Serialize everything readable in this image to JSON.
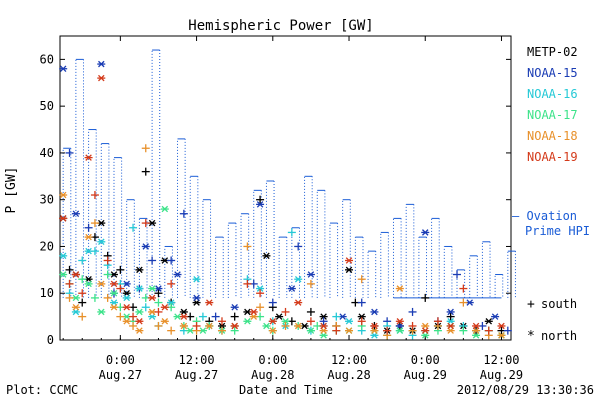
{
  "chart_data": {
    "type": "scatter",
    "title": "Hemispheric Power [GW]",
    "xlabel": "Date and Time",
    "ylabel": "P [GW]",
    "ylim": [
      0,
      65
    ],
    "xlim": [
      -9.5,
      61.5
    ],
    "x_unit": "hours since 2012-08-27 00:00 UT",
    "y_ticks": [
      0,
      10,
      20,
      30,
      40,
      50,
      60
    ],
    "x_ticks": [
      {
        "x": 0,
        "time": "0:00",
        "date": "Aug.27"
      },
      {
        "x": 12,
        "time": "12:00",
        "date": "Aug.27"
      },
      {
        "x": 24,
        "time": "0:00",
        "date": "Aug.28"
      },
      {
        "x": 36,
        "time": "12:00",
        "date": "Aug.28"
      },
      {
        "x": 48,
        "time": "0:00",
        "date": "Aug.29"
      },
      {
        "x": 60,
        "time": "12:00",
        "date": "Aug.29"
      }
    ],
    "footer_left": "Plot: CCMC",
    "footer_right": "2012/08/29 13:30:36",
    "legend_position": "right",
    "series": [
      {
        "name": "METP-02",
        "color": "#000000",
        "points": [
          [
            -9,
            26
          ],
          [
            -8,
            15
          ],
          [
            -7,
            14
          ],
          [
            -6,
            8
          ],
          [
            -5,
            13
          ],
          [
            -4,
            22
          ],
          [
            -3,
            25
          ],
          [
            -2,
            18
          ],
          [
            -1,
            14
          ],
          [
            0,
            15
          ],
          [
            1,
            10
          ],
          [
            2,
            7
          ],
          [
            3,
            15
          ],
          [
            4,
            36
          ],
          [
            5,
            25
          ],
          [
            6,
            10
          ],
          [
            7,
            17
          ],
          [
            8,
            8
          ],
          [
            10,
            6
          ],
          [
            11,
            5
          ],
          [
            12,
            8
          ],
          [
            14,
            4
          ],
          [
            16,
            3
          ],
          [
            18,
            5
          ],
          [
            20,
            6
          ],
          [
            22,
            30
          ],
          [
            23,
            18
          ],
          [
            24,
            7
          ],
          [
            25,
            5
          ],
          [
            27,
            4
          ],
          [
            29,
            3
          ],
          [
            30,
            6
          ],
          [
            32,
            5
          ],
          [
            34,
            3
          ],
          [
            36,
            15
          ],
          [
            37,
            8
          ],
          [
            38,
            5
          ],
          [
            40,
            3
          ],
          [
            42,
            2
          ],
          [
            44,
            3
          ],
          [
            46,
            2
          ],
          [
            48,
            9
          ],
          [
            50,
            3
          ],
          [
            52,
            5
          ],
          [
            54,
            3
          ],
          [
            56,
            2
          ],
          [
            58,
            4
          ],
          [
            60,
            2
          ]
        ]
      },
      {
        "name": "NOAA-15",
        "color": "#1a3cb4",
        "points": [
          [
            -9,
            58
          ],
          [
            -8,
            40
          ],
          [
            -7,
            27
          ],
          [
            -5,
            24
          ],
          [
            -3,
            59
          ],
          [
            -1,
            10
          ],
          [
            1,
            12
          ],
          [
            3,
            11
          ],
          [
            4,
            20
          ],
          [
            5,
            17
          ],
          [
            6,
            11
          ],
          [
            8,
            17
          ],
          [
            9,
            14
          ],
          [
            10,
            27
          ],
          [
            12,
            9
          ],
          [
            15,
            5
          ],
          [
            18,
            7
          ],
          [
            21,
            12
          ],
          [
            22,
            29
          ],
          [
            24,
            8
          ],
          [
            27,
            11
          ],
          [
            28,
            20
          ],
          [
            30,
            14
          ],
          [
            32,
            4
          ],
          [
            35,
            5
          ],
          [
            38,
            8
          ],
          [
            40,
            6
          ],
          [
            42,
            4
          ],
          [
            44,
            3
          ],
          [
            46,
            6
          ],
          [
            48,
            23
          ],
          [
            50,
            4
          ],
          [
            52,
            6
          ],
          [
            53,
            14
          ],
          [
            55,
            8
          ],
          [
            57,
            3
          ],
          [
            59,
            5
          ],
          [
            61,
            2
          ]
        ]
      },
      {
        "name": "NOAA-16",
        "color": "#25c9d6",
        "points": [
          [
            -9,
            18
          ],
          [
            -8,
            10
          ],
          [
            -7,
            6
          ],
          [
            -6,
            17
          ],
          [
            -5,
            19
          ],
          [
            -4,
            19
          ],
          [
            -3,
            21
          ],
          [
            -2,
            16
          ],
          [
            -1,
            8
          ],
          [
            0,
            12
          ],
          [
            1,
            9
          ],
          [
            2,
            24
          ],
          [
            3,
            11
          ],
          [
            4,
            7
          ],
          [
            5,
            5
          ],
          [
            6,
            3
          ],
          [
            8,
            8
          ],
          [
            10,
            2
          ],
          [
            12,
            13
          ],
          [
            13,
            5
          ],
          [
            14,
            3
          ],
          [
            16,
            2
          ],
          [
            18,
            3
          ],
          [
            20,
            13
          ],
          [
            22,
            11
          ],
          [
            24,
            4
          ],
          [
            26,
            3
          ],
          [
            27,
            23
          ],
          [
            28,
            13
          ],
          [
            30,
            2
          ],
          [
            32,
            3
          ],
          [
            34,
            5
          ],
          [
            36,
            4
          ],
          [
            38,
            2
          ],
          [
            40,
            1
          ],
          [
            42,
            3
          ],
          [
            44,
            2
          ],
          [
            46,
            1
          ],
          [
            48,
            2
          ],
          [
            50,
            3
          ],
          [
            52,
            4
          ],
          [
            54,
            3
          ],
          [
            56,
            2
          ],
          [
            58,
            2
          ],
          [
            60,
            1
          ]
        ]
      },
      {
        "name": "NOAA-17",
        "color": "#3de38a",
        "points": [
          [
            -9,
            14
          ],
          [
            -8,
            12
          ],
          [
            -7,
            9
          ],
          [
            -6,
            13
          ],
          [
            -5,
            12
          ],
          [
            -4,
            9
          ],
          [
            -3,
            6
          ],
          [
            -2,
            14
          ],
          [
            -1,
            10
          ],
          [
            0,
            7
          ],
          [
            1,
            5
          ],
          [
            2,
            4
          ],
          [
            3,
            6
          ],
          [
            4,
            9
          ],
          [
            5,
            11
          ],
          [
            6,
            8
          ],
          [
            7,
            28
          ],
          [
            8,
            7
          ],
          [
            9,
            5
          ],
          [
            10,
            3
          ],
          [
            11,
            2
          ],
          [
            12,
            4
          ],
          [
            13,
            2
          ],
          [
            14,
            3
          ],
          [
            16,
            2
          ],
          [
            18,
            2
          ],
          [
            20,
            4
          ],
          [
            22,
            5
          ],
          [
            23,
            3
          ],
          [
            24,
            2
          ],
          [
            26,
            4
          ],
          [
            28,
            3
          ],
          [
            30,
            2
          ],
          [
            31,
            3
          ],
          [
            32,
            1
          ],
          [
            34,
            2
          ],
          [
            36,
            2
          ],
          [
            38,
            3
          ],
          [
            40,
            2
          ],
          [
            42,
            1
          ],
          [
            44,
            2
          ],
          [
            46,
            2
          ],
          [
            48,
            1
          ],
          [
            50,
            2
          ],
          [
            52,
            3
          ],
          [
            54,
            2
          ],
          [
            56,
            1
          ],
          [
            58,
            2
          ],
          [
            60,
            1
          ]
        ]
      },
      {
        "name": "NOAA-18",
        "color": "#e8902a",
        "points": [
          [
            -9,
            31
          ],
          [
            -8,
            9
          ],
          [
            -7,
            7
          ],
          [
            -6,
            5
          ],
          [
            -5,
            22
          ],
          [
            -4,
            25
          ],
          [
            -3,
            12
          ],
          [
            -2,
            9
          ],
          [
            -1,
            7
          ],
          [
            0,
            5
          ],
          [
            1,
            4
          ],
          [
            2,
            3
          ],
          [
            3,
            2
          ],
          [
            4,
            41
          ],
          [
            5,
            6
          ],
          [
            6,
            3
          ],
          [
            7,
            4
          ],
          [
            8,
            2
          ],
          [
            10,
            3
          ],
          [
            12,
            2
          ],
          [
            14,
            3
          ],
          [
            16,
            2
          ],
          [
            18,
            3
          ],
          [
            20,
            20
          ],
          [
            21,
            5
          ],
          [
            22,
            7
          ],
          [
            24,
            2
          ],
          [
            26,
            3
          ],
          [
            28,
            3
          ],
          [
            30,
            12
          ],
          [
            32,
            2
          ],
          [
            34,
            3
          ],
          [
            36,
            2
          ],
          [
            38,
            13
          ],
          [
            40,
            2
          ],
          [
            42,
            1
          ],
          [
            44,
            11
          ],
          [
            46,
            2
          ],
          [
            48,
            3
          ],
          [
            50,
            3
          ],
          [
            52,
            2
          ],
          [
            54,
            8
          ],
          [
            56,
            2
          ],
          [
            58,
            1
          ],
          [
            60,
            1
          ]
        ]
      },
      {
        "name": "NOAA-19",
        "color": "#d43a1a",
        "points": [
          [
            -9,
            26
          ],
          [
            -8,
            12
          ],
          [
            -7,
            14
          ],
          [
            -6,
            10
          ],
          [
            -5,
            39
          ],
          [
            -4,
            31
          ],
          [
            -3,
            56
          ],
          [
            -2,
            17
          ],
          [
            -1,
            12
          ],
          [
            0,
            11
          ],
          [
            1,
            7
          ],
          [
            2,
            5
          ],
          [
            3,
            4
          ],
          [
            4,
            25
          ],
          [
            5,
            9
          ],
          [
            6,
            6
          ],
          [
            7,
            7
          ],
          [
            8,
            12
          ],
          [
            10,
            5
          ],
          [
            12,
            3
          ],
          [
            14,
            8
          ],
          [
            16,
            4
          ],
          [
            18,
            3
          ],
          [
            20,
            12
          ],
          [
            21,
            6
          ],
          [
            22,
            10
          ],
          [
            24,
            4
          ],
          [
            26,
            6
          ],
          [
            28,
            8
          ],
          [
            30,
            4
          ],
          [
            32,
            3
          ],
          [
            34,
            2
          ],
          [
            36,
            17
          ],
          [
            38,
            4
          ],
          [
            40,
            3
          ],
          [
            42,
            2
          ],
          [
            44,
            4
          ],
          [
            46,
            3
          ],
          [
            48,
            2
          ],
          [
            50,
            4
          ],
          [
            52,
            3
          ],
          [
            54,
            11
          ],
          [
            56,
            3
          ],
          [
            58,
            2
          ],
          [
            60,
            3
          ]
        ]
      }
    ],
    "ovation": {
      "name": "Ovation Prime HPI",
      "label_line1": "— Ovation",
      "label_line2": "Prime HPI",
      "color": "#1a5cd6",
      "points": [
        [
          -9,
          41
        ],
        [
          -7,
          60
        ],
        [
          -5,
          45
        ],
        [
          -3,
          42
        ],
        [
          -1,
          39
        ],
        [
          1,
          30
        ],
        [
          3,
          26
        ],
        [
          5,
          62
        ],
        [
          7,
          20
        ],
        [
          9,
          43
        ],
        [
          11,
          35
        ],
        [
          13,
          30
        ],
        [
          15,
          22
        ],
        [
          17,
          25
        ],
        [
          19,
          27
        ],
        [
          21,
          32
        ],
        [
          23,
          34
        ],
        [
          25,
          22
        ],
        [
          27,
          24
        ],
        [
          29,
          35
        ],
        [
          31,
          32
        ],
        [
          33,
          25
        ],
        [
          35,
          30
        ],
        [
          37,
          22
        ],
        [
          39,
          19
        ],
        [
          41,
          23
        ],
        [
          43,
          26
        ],
        [
          45,
          29
        ],
        [
          47,
          22
        ],
        [
          49,
          26
        ],
        [
          51,
          20
        ],
        [
          53,
          15
        ],
        [
          55,
          18
        ],
        [
          57,
          21
        ],
        [
          59,
          14
        ],
        [
          61,
          19
        ]
      ],
      "baseline": 9
    },
    "symbol_legend": [
      {
        "symbol": "+",
        "label": "south"
      },
      {
        "symbol": "*",
        "label": "north"
      }
    ]
  }
}
